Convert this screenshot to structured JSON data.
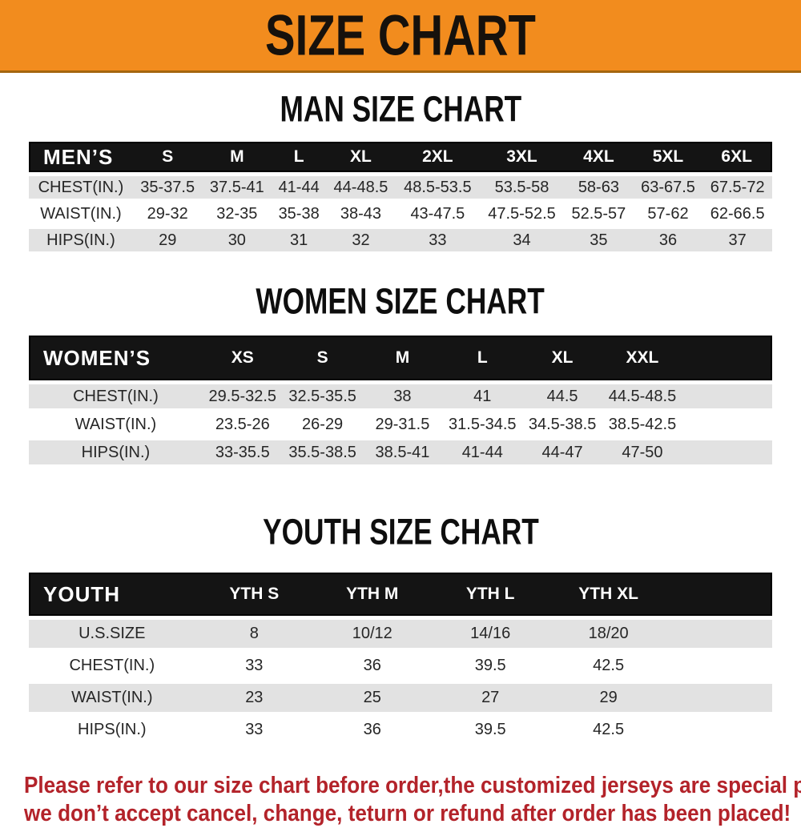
{
  "banner": {
    "title": "SIZE CHART",
    "bg_color": "#F28C1E",
    "title_color": "#16110C"
  },
  "sections": [
    {
      "heading": "MAN SIZE CHART",
      "table": {
        "group_label": "MEN’S",
        "columns": [
          "S",
          "M",
          "L",
          "XL",
          "2XL",
          "3XL",
          "4XL",
          "5XL",
          "6XL"
        ],
        "rows": [
          {
            "label": "CHEST(IN.)",
            "values": [
              "35-37.5",
              "37.5-41",
              "41-44",
              "44-48.5",
              "48.5-53.5",
              "53.5-58",
              "58-63",
              "63-67.5",
              "67.5-72"
            ]
          },
          {
            "label": "WAIST(IN.)",
            "values": [
              "29-32",
              "32-35",
              "35-38",
              "38-43",
              "43-47.5",
              "47.5-52.5",
              "52.5-57",
              "57-62",
              "62-66.5"
            ]
          },
          {
            "label": "HIPS(IN.)",
            "values": [
              "29",
              "30",
              "31",
              "32",
              "33",
              "34",
              "35",
              "36",
              "37"
            ]
          }
        ]
      }
    },
    {
      "heading": "WOMEN SIZE CHART",
      "table": {
        "group_label": "WOMEN’S",
        "columns": [
          "XS",
          "S",
          "M",
          "L",
          "XL",
          "XXL"
        ],
        "rows": [
          {
            "label": "CHEST(IN.)",
            "values": [
              "29.5-32.5",
              "32.5-35.5",
              "38",
              "41",
              "44.5",
              "44.5-48.5"
            ]
          },
          {
            "label": "WAIST(IN.)",
            "values": [
              "23.5-26",
              "26-29",
              "29-31.5",
              "31.5-34.5",
              "34.5-38.5",
              "38.5-42.5"
            ]
          },
          {
            "label": "HIPS(IN.)",
            "values": [
              "33-35.5",
              "35.5-38.5",
              "38.5-41",
              "41-44",
              "44-47",
              "47-50"
            ]
          }
        ]
      }
    },
    {
      "heading": "YOUTH SIZE CHART",
      "table": {
        "group_label": "YOUTH",
        "columns": [
          "YTH S",
          "YTH M",
          "YTH L",
          "YTH XL"
        ],
        "rows": [
          {
            "label": "U.S.SIZE",
            "values": [
              "8",
              "10/12",
              "14/16",
              "18/20"
            ]
          },
          {
            "label": "CHEST(IN.)",
            "values": [
              "33",
              "36",
              "39.5",
              "42.5"
            ]
          },
          {
            "label": "WAIST(IN.)",
            "values": [
              "23",
              "25",
              "27",
              "29"
            ]
          },
          {
            "label": "HIPS(IN.)",
            "values": [
              "33",
              "36",
              "39.5",
              "42.5"
            ]
          }
        ]
      }
    }
  ],
  "footer": {
    "lines": [
      "Please refer to our size chart before order,the customized jerseys are special products,",
      "we don’t accept cancel, change, teturn or refund after order has been placed!"
    ],
    "text_color": "#B3232A"
  },
  "colors": {
    "header_bar": "#141414",
    "row_alt": "#E2E2E2",
    "row_base": "#FFFFFF"
  }
}
